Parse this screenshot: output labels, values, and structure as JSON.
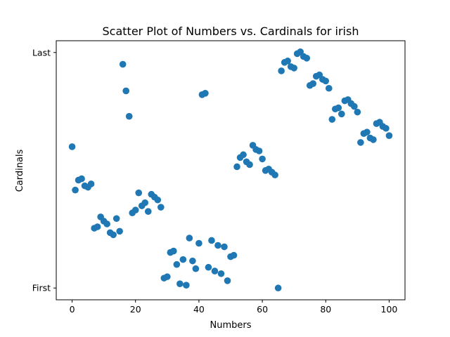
{
  "chart_data": {
    "type": "scatter",
    "title": "Scatter Plot of Numbers vs. Cardinals for irish",
    "xlabel": "Numbers",
    "ylabel": "Cardinals",
    "xlim": [
      -5,
      105
    ],
    "ylim": [
      -0.05,
      1.05
    ],
    "xticks": [
      0,
      20,
      40,
      60,
      80,
      100
    ],
    "xtick_labels": [
      "0",
      "20",
      "40",
      "60",
      "80",
      "100"
    ],
    "yticks": [
      0,
      1
    ],
    "ytick_labels": [
      "First",
      "Last"
    ],
    "grid": false,
    "marker_color": "#1f77b4",
    "points": [
      [
        0,
        0.6
      ],
      [
        1,
        0.416
      ],
      [
        2,
        0.458
      ],
      [
        3,
        0.464
      ],
      [
        4,
        0.434
      ],
      [
        5,
        0.428
      ],
      [
        6,
        0.442
      ],
      [
        7,
        0.254
      ],
      [
        8,
        0.26
      ],
      [
        9,
        0.302
      ],
      [
        10,
        0.284
      ],
      [
        11,
        0.272
      ],
      [
        12,
        0.235
      ],
      [
        13,
        0.226
      ],
      [
        14,
        0.295
      ],
      [
        15,
        0.241
      ],
      [
        16,
        0.95
      ],
      [
        17,
        0.837
      ],
      [
        18,
        0.729
      ],
      [
        19,
        0.319
      ],
      [
        20,
        0.331
      ],
      [
        21,
        0.404
      ],
      [
        22,
        0.349
      ],
      [
        23,
        0.362
      ],
      [
        24,
        0.325
      ],
      [
        25,
        0.398
      ],
      [
        26,
        0.386
      ],
      [
        27,
        0.374
      ],
      [
        28,
        0.343
      ],
      [
        29,
        0.042
      ],
      [
        30,
        0.048
      ],
      [
        31,
        0.151
      ],
      [
        32,
        0.157
      ],
      [
        33,
        0.1
      ],
      [
        34,
        0.018
      ],
      [
        35,
        0.121
      ],
      [
        36,
        0.012
      ],
      [
        37,
        0.212
      ],
      [
        38,
        0.115
      ],
      [
        39,
        0.082
      ],
      [
        40,
        0.19
      ],
      [
        41,
        0.821
      ],
      [
        42,
        0.827
      ],
      [
        43,
        0.088
      ],
      [
        44,
        0.202
      ],
      [
        45,
        0.072
      ],
      [
        46,
        0.181
      ],
      [
        47,
        0.061
      ],
      [
        48,
        0.175
      ],
      [
        49,
        0.031
      ],
      [
        50,
        0.133
      ],
      [
        51,
        0.139
      ],
      [
        52,
        0.515
      ],
      [
        53,
        0.554
      ],
      [
        54,
        0.566
      ],
      [
        55,
        0.536
      ],
      [
        56,
        0.524
      ],
      [
        57,
        0.606
      ],
      [
        58,
        0.588
      ],
      [
        59,
        0.582
      ],
      [
        60,
        0.548
      ],
      [
        61,
        0.499
      ],
      [
        62,
        0.505
      ],
      [
        63,
        0.492
      ],
      [
        64,
        0.48
      ],
      [
        65,
        0
      ],
      [
        66,
        0.922
      ],
      [
        67,
        0.958
      ],
      [
        68,
        0.964
      ],
      [
        69,
        0.94
      ],
      [
        70,
        0.934
      ],
      [
        71,
        0.995
      ],
      [
        72,
        1.003
      ],
      [
        73,
        0.983
      ],
      [
        74,
        0.976
      ],
      [
        75,
        0.86
      ],
      [
        76,
        0.868
      ],
      [
        77,
        0.899
      ],
      [
        78,
        0.905
      ],
      [
        79,
        0.886
      ],
      [
        80,
        0.879
      ],
      [
        81,
        0.848
      ],
      [
        82,
        0.716
      ],
      [
        83,
        0.76
      ],
      [
        84,
        0.765
      ],
      [
        85,
        0.739
      ],
      [
        86,
        0.795
      ],
      [
        87,
        0.8
      ],
      [
        88,
        0.783
      ],
      [
        89,
        0.771
      ],
      [
        90,
        0.747
      ],
      [
        91,
        0.618
      ],
      [
        92,
        0.656
      ],
      [
        93,
        0.662
      ],
      [
        94,
        0.637
      ],
      [
        95,
        0.63
      ],
      [
        96,
        0.698
      ],
      [
        97,
        0.704
      ],
      [
        98,
        0.686
      ],
      [
        99,
        0.678
      ],
      [
        100,
        0.647
      ]
    ]
  }
}
